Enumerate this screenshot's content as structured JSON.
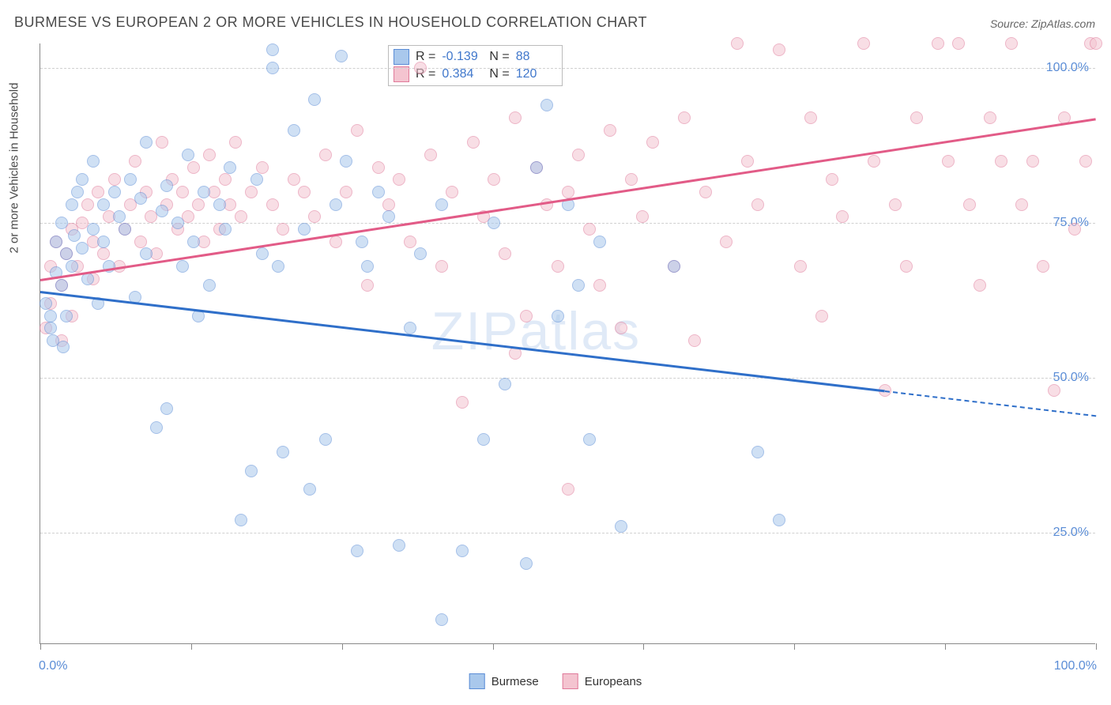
{
  "title": "BURMESE VS EUROPEAN 2 OR MORE VEHICLES IN HOUSEHOLD CORRELATION CHART",
  "source": "Source: ZipAtlas.com",
  "watermark": "ZIPatlas",
  "y_axis_label": "2 or more Vehicles in Household",
  "chart": {
    "type": "scatter",
    "xlim": [
      0,
      100
    ],
    "ylim": [
      7,
      104
    ],
    "x_ticks": [
      0,
      14.3,
      28.6,
      42.9,
      57.1,
      71.4,
      85.7,
      100
    ],
    "x_tick_labels_ends": {
      "left": "0.0%",
      "right": "100.0%"
    },
    "y_gridlines": [
      25,
      50,
      75,
      100
    ],
    "y_tick_labels": [
      "25.0%",
      "50.0%",
      "75.0%",
      "100.0%"
    ],
    "background_color": "#ffffff",
    "grid_color": "#d0d0d0",
    "axis_color": "#888888",
    "tick_label_color": "#5b8dd6",
    "title_color": "#4a4a4a",
    "title_fontsize": 18,
    "label_fontsize": 15,
    "tick_fontsize": 16,
    "point_radius": 8,
    "point_opacity": 0.55
  },
  "series": {
    "burmese": {
      "label": "Burmese",
      "fill": "#a9c8ec",
      "stroke": "#5b8dd6",
      "line_color": "#2f6fc9",
      "R": "-0.139",
      "N": "88",
      "trend": {
        "x1": 0,
        "y1": 64,
        "x2": 80,
        "y2": 48,
        "x2_dash": 100,
        "y2_dash": 44
      },
      "points": [
        [
          0.5,
          62
        ],
        [
          1,
          60
        ],
        [
          1,
          58
        ],
        [
          1.2,
          56
        ],
        [
          1.5,
          72
        ],
        [
          1.5,
          67
        ],
        [
          2,
          65
        ],
        [
          2,
          75
        ],
        [
          2.2,
          55
        ],
        [
          2.5,
          70
        ],
        [
          2.5,
          60
        ],
        [
          3,
          78
        ],
        [
          3,
          68
        ],
        [
          3.2,
          73
        ],
        [
          3.5,
          80
        ],
        [
          4,
          71
        ],
        [
          4,
          82
        ],
        [
          4.5,
          66
        ],
        [
          5,
          85
        ],
        [
          5,
          74
        ],
        [
          5.5,
          62
        ],
        [
          6,
          78
        ],
        [
          6,
          72
        ],
        [
          6.5,
          68
        ],
        [
          7,
          80
        ],
        [
          7.5,
          76
        ],
        [
          8,
          74
        ],
        [
          8.5,
          82
        ],
        [
          9,
          63
        ],
        [
          9.5,
          79
        ],
        [
          10,
          88
        ],
        [
          10,
          70
        ],
        [
          11,
          42
        ],
        [
          11.5,
          77
        ],
        [
          12,
          81
        ],
        [
          12,
          45
        ],
        [
          13,
          75
        ],
        [
          13.5,
          68
        ],
        [
          14,
          86
        ],
        [
          14.5,
          72
        ],
        [
          15,
          60
        ],
        [
          15.5,
          80
        ],
        [
          16,
          65
        ],
        [
          17,
          78
        ],
        [
          17.5,
          74
        ],
        [
          18,
          84
        ],
        [
          19,
          27
        ],
        [
          20,
          35
        ],
        [
          20.5,
          82
        ],
        [
          21,
          70
        ],
        [
          22,
          103
        ],
        [
          22,
          100
        ],
        [
          22.5,
          68
        ],
        [
          23,
          38
        ],
        [
          24,
          90
        ],
        [
          25,
          74
        ],
        [
          25.5,
          32
        ],
        [
          26,
          95
        ],
        [
          27,
          40
        ],
        [
          28,
          78
        ],
        [
          28.5,
          102
        ],
        [
          29,
          85
        ],
        [
          30,
          22
        ],
        [
          30.5,
          72
        ],
        [
          31,
          68
        ],
        [
          32,
          80
        ],
        [
          33,
          76
        ],
        [
          34,
          23
        ],
        [
          35,
          58
        ],
        [
          36,
          70
        ],
        [
          38,
          11
        ],
        [
          38,
          78
        ],
        [
          40,
          22
        ],
        [
          42,
          40
        ],
        [
          43,
          75
        ],
        [
          44,
          49
        ],
        [
          46,
          20
        ],
        [
          47,
          84
        ],
        [
          48,
          94
        ],
        [
          49,
          60
        ],
        [
          50,
          78
        ],
        [
          51,
          65
        ],
        [
          52,
          40
        ],
        [
          53,
          72
        ],
        [
          55,
          26
        ],
        [
          60,
          68
        ],
        [
          68,
          38
        ],
        [
          70,
          27
        ]
      ]
    },
    "europeans": {
      "label": "Europeans",
      "fill": "#f4c4d0",
      "stroke": "#e07a9a",
      "line_color": "#e25b87",
      "R": "0.384",
      "N": "120",
      "trend": {
        "x1": 0,
        "y1": 66,
        "x2": 100,
        "y2": 92
      },
      "points": [
        [
          0.5,
          58
        ],
        [
          1,
          62
        ],
        [
          1,
          68
        ],
        [
          1.5,
          72
        ],
        [
          2,
          56
        ],
        [
          2,
          65
        ],
        [
          2.5,
          70
        ],
        [
          3,
          74
        ],
        [
          3,
          60
        ],
        [
          3.5,
          68
        ],
        [
          4,
          75
        ],
        [
          4.5,
          78
        ],
        [
          5,
          66
        ],
        [
          5,
          72
        ],
        [
          5.5,
          80
        ],
        [
          6,
          70
        ],
        [
          6.5,
          76
        ],
        [
          7,
          82
        ],
        [
          7.5,
          68
        ],
        [
          8,
          74
        ],
        [
          8.5,
          78
        ],
        [
          9,
          85
        ],
        [
          9.5,
          72
        ],
        [
          10,
          80
        ],
        [
          10.5,
          76
        ],
        [
          11,
          70
        ],
        [
          11.5,
          88
        ],
        [
          12,
          78
        ],
        [
          12.5,
          82
        ],
        [
          13,
          74
        ],
        [
          13.5,
          80
        ],
        [
          14,
          76
        ],
        [
          14.5,
          84
        ],
        [
          15,
          78
        ],
        [
          15.5,
          72
        ],
        [
          16,
          86
        ],
        [
          16.5,
          80
        ],
        [
          17,
          74
        ],
        [
          17.5,
          82
        ],
        [
          18,
          78
        ],
        [
          18.5,
          88
        ],
        [
          19,
          76
        ],
        [
          20,
          80
        ],
        [
          21,
          84
        ],
        [
          22,
          78
        ],
        [
          23,
          74
        ],
        [
          24,
          82
        ],
        [
          25,
          80
        ],
        [
          26,
          76
        ],
        [
          27,
          86
        ],
        [
          28,
          72
        ],
        [
          29,
          80
        ],
        [
          30,
          90
        ],
        [
          31,
          65
        ],
        [
          32,
          84
        ],
        [
          33,
          78
        ],
        [
          34,
          82
        ],
        [
          35,
          72
        ],
        [
          36,
          100
        ],
        [
          37,
          86
        ],
        [
          38,
          68
        ],
        [
          39,
          80
        ],
        [
          40,
          46
        ],
        [
          41,
          88
        ],
        [
          42,
          76
        ],
        [
          43,
          82
        ],
        [
          44,
          70
        ],
        [
          45,
          92
        ],
        [
          46,
          60
        ],
        [
          47,
          84
        ],
        [
          48,
          78
        ],
        [
          49,
          68
        ],
        [
          50,
          32
        ],
        [
          51,
          86
        ],
        [
          52,
          74
        ],
        [
          53,
          65
        ],
        [
          54,
          90
        ],
        [
          55,
          58
        ],
        [
          56,
          82
        ],
        [
          57,
          76
        ],
        [
          58,
          88
        ],
        [
          60,
          68
        ],
        [
          61,
          92
        ],
        [
          62,
          56
        ],
        [
          63,
          80
        ],
        [
          65,
          72
        ],
        [
          66,
          104
        ],
        [
          67,
          85
        ],
        [
          68,
          78
        ],
        [
          70,
          103
        ],
        [
          72,
          68
        ],
        [
          73,
          92
        ],
        [
          74,
          60
        ],
        [
          75,
          82
        ],
        [
          76,
          76
        ],
        [
          78,
          104
        ],
        [
          79,
          85
        ],
        [
          80,
          48
        ],
        [
          81,
          78
        ],
        [
          82,
          68
        ],
        [
          83,
          92
        ],
        [
          85,
          104
        ],
        [
          86,
          85
        ],
        [
          87,
          104
        ],
        [
          88,
          78
        ],
        [
          89,
          65
        ],
        [
          90,
          92
        ],
        [
          91,
          85
        ],
        [
          92,
          104
        ],
        [
          93,
          78
        ],
        [
          94,
          85
        ],
        [
          95,
          68
        ],
        [
          96,
          48
        ],
        [
          97,
          92
        ],
        [
          98,
          74
        ],
        [
          99,
          85
        ],
        [
          99.5,
          104
        ],
        [
          100,
          104
        ],
        [
          45,
          54
        ],
        [
          50,
          80
        ]
      ]
    }
  },
  "bottom_legend": [
    {
      "label": "Burmese",
      "series": "burmese"
    },
    {
      "label": "Europeans",
      "series": "europeans"
    }
  ]
}
